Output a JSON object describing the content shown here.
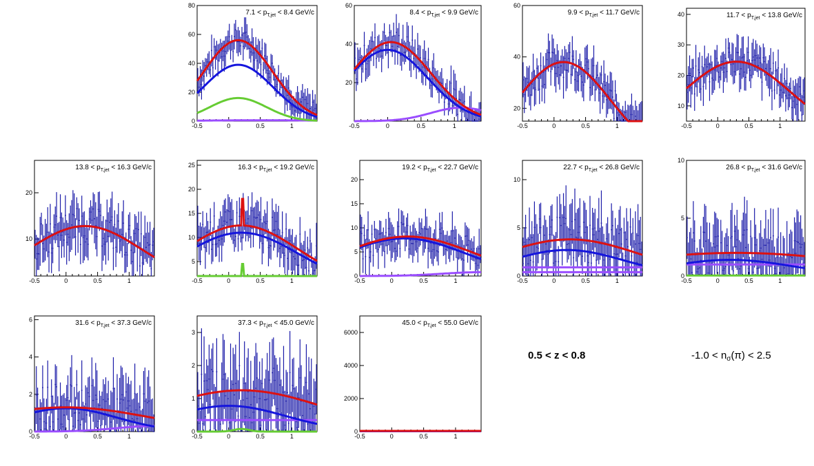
{
  "labels": {
    "z_range": "0.5 < z < 0.8",
    "nsigma_prefix": "-1.0 < n",
    "nsigma_sub": "σ",
    "nsigma_suffix": "(π) < 2.5"
  },
  "colors": {
    "data": "#1a1aa8",
    "total_fit": "#dd1111",
    "pion_fit": "#1515dd",
    "kaon_proton_fit": "#66cc33",
    "electron_fit": "#9a4dff"
  },
  "chart_data": [
    {
      "type": "line",
      "title": "7.1 < p_{T,jet} < 8.4 GeV/c",
      "title_parts": [
        "7.1 < p",
        "T,jet",
        "< 8.4 GeV/c"
      ],
      "xlim": [
        -0.5,
        1.4
      ],
      "ylim": [
        0,
        80
      ],
      "xticks": [
        "-0.5",
        "0",
        "0.5",
        "1"
      ],
      "yticks": [
        "0",
        "20",
        "40",
        "60",
        "80"
      ],
      "data_mean": {
        "amp": 56,
        "center": 0.15,
        "sigma": 0.55
      },
      "data_scatter": 8,
      "curves": {
        "total": {
          "amp": 56,
          "center": 0.15,
          "sigma": 0.55
        },
        "pion": {
          "amp": 39,
          "center": 0.15,
          "sigma": 0.55
        },
        "kaon": {
          "amp": 16,
          "center": 0.15,
          "sigma": 0.45
        },
        "electron": {
          "amp": 0.6,
          "center": 0.5,
          "sigma": 1.0
        }
      }
    },
    {
      "type": "line",
      "title": "8.4 < p_{T,jet} < 9.9 GeV/c",
      "title_parts": [
        "8.4 < p",
        "T,jet",
        "< 9.9 GeV/c"
      ],
      "xlim": [
        -0.5,
        1.4
      ],
      "ylim": [
        0,
        60
      ],
      "xticks": [
        "-0.5",
        "0",
        "0.5",
        "1"
      ],
      "yticks": [
        "20",
        "40",
        "60"
      ],
      "data_mean": {
        "amp": 41,
        "center": 0.05,
        "sigma": 0.6
      },
      "data_scatter": 7,
      "curves": {
        "total": {
          "amp": 41,
          "center": 0.05,
          "sigma": 0.6
        },
        "pion": {
          "amp": 37,
          "center": 0.0,
          "sigma": 0.6
        },
        "electron": {
          "amp": 7,
          "center": 1.1,
          "sigma": 0.45
        }
      }
    },
    {
      "type": "line",
      "title": "9.9 < p_{T,jet} < 11.7 GeV/c",
      "title_parts": [
        "9.9 < p",
        "T,jet",
        "< 11.7 GeV/c"
      ],
      "xlim": [
        -0.5,
        1.4
      ],
      "ylim": [
        15,
        60
      ],
      "xticks": [
        "-0.5",
        "0",
        "0.5",
        "1"
      ],
      "yticks": [
        "20",
        "40",
        "60"
      ],
      "data_mean": {
        "amp": 38,
        "center": 0.15,
        "sigma": 0.75
      },
      "data_scatter": 6,
      "curves": {
        "total": {
          "amp": 38,
          "center": 0.15,
          "sigma": 0.75
        },
        "pion": {
          "amp": 38,
          "center": 0.15,
          "sigma": 0.75
        }
      }
    },
    {
      "type": "line",
      "title": "11.7 < p_{T,jet} < 13.8 GeV/c",
      "title_parts": [
        "11.7 < p",
        "T,jet",
        "< 13.8 GeV/c"
      ],
      "xlim": [
        -0.5,
        1.4
      ],
      "ylim": [
        5,
        42
      ],
      "xticks": [
        "-0.5",
        "0",
        "0.5",
        "1"
      ],
      "yticks": [
        "10",
        "20",
        "30",
        "40"
      ],
      "data_mean": {
        "amp": 24.5,
        "center": 0.3,
        "sigma": 0.85
      },
      "data_scatter": 5,
      "curves": {
        "total": {
          "amp": 24.5,
          "center": 0.3,
          "sigma": 0.85
        },
        "pion": {
          "amp": 24.5,
          "center": 0.3,
          "sigma": 0.85
        }
      }
    },
    {
      "type": "line",
      "title": "13.8 < p_{T,jet} < 16.3 GeV/c",
      "title_parts": [
        "13.8 < p",
        "T,jet",
        "< 16.3 GeV/c"
      ],
      "xlim": [
        -0.5,
        1.4
      ],
      "ylim": [
        2,
        27
      ],
      "xticks": [
        "-0.5",
        "0",
        "0.5",
        "1"
      ],
      "yticks": [
        "10",
        "20"
      ],
      "data_mean": {
        "amp": 12.8,
        "center": 0.3,
        "sigma": 0.9
      },
      "data_scatter": 4,
      "curves": {
        "total": {
          "amp": 12.8,
          "center": 0.3,
          "sigma": 0.9
        },
        "pion": {
          "amp": 12.8,
          "center": 0.3,
          "sigma": 0.9
        }
      }
    },
    {
      "type": "line",
      "title": "16.3 < p_{T,jet} < 19.2 GeV/c",
      "title_parts": [
        "16.3 < p",
        "T,jet",
        "< 19.2 GeV/c"
      ],
      "xlim": [
        -0.5,
        1.4
      ],
      "ylim": [
        2,
        26
      ],
      "xticks": [
        "-0.5",
        "0",
        "0.5",
        "1"
      ],
      "yticks": [
        "5",
        "10",
        "15",
        "20",
        "25"
      ],
      "data_mean": {
        "amp": 12.5,
        "center": 0.2,
        "sigma": 0.9
      },
      "data_scatter": 3.5,
      "curves": {
        "total": {
          "amp": 12.5,
          "center": 0.2,
          "sigma": 0.9,
          "spike": {
            "at": 0.22,
            "height": 5.5
          }
        },
        "pion": {
          "amp": 11,
          "center": 0.2,
          "sigma": 0.9
        },
        "kaon": {
          "spike": {
            "at": 0.22,
            "height": 4.5
          }
        }
      }
    },
    {
      "type": "line",
      "title": "19.2 < p_{T,jet} < 22.7 GeV/c",
      "title_parts": [
        "19.2 < p",
        "T,jet",
        "< 22.7 GeV/c"
      ],
      "xlim": [
        -0.5,
        1.4
      ],
      "ylim": [
        0,
        24
      ],
      "xticks": [
        "-0.5",
        "0",
        "0.5",
        "1"
      ],
      "yticks": [
        "0",
        "5",
        "10",
        "15",
        "20"
      ],
      "data_mean": {
        "amp": 8.2,
        "center": 0.25,
        "sigma": 1.0
      },
      "data_scatter": 3,
      "curves": {
        "total": {
          "amp": 8.2,
          "center": 0.25,
          "sigma": 1.0
        },
        "pion": {
          "amp": 7.8,
          "center": 0.2,
          "sigma": 0.95
        },
        "electron": {
          "amp": 0.8,
          "center": 1.4,
          "sigma": 0.6
        }
      }
    },
    {
      "type": "line",
      "title": "22.7 < p_{T,jet} < 26.8 GeV/c",
      "title_parts": [
        "22.7 < p",
        "T,jet",
        "< 26.8 GeV/c"
      ],
      "xlim": [
        -0.5,
        1.4
      ],
      "ylim": [
        0,
        12
      ],
      "xticks": [
        "-0.5",
        "0",
        "0.5",
        "1"
      ],
      "yticks": [
        "0",
        "5",
        "10"
      ],
      "data_mean": {
        "amp": 3.8,
        "center": 0.25,
        "sigma": 1.1
      },
      "data_scatter": 2.5,
      "curves": {
        "total": {
          "amp": 3.8,
          "center": 0.25,
          "sigma": 1.1
        },
        "pion": {
          "amp": 2.7,
          "center": 0.2,
          "sigma": 0.9
        },
        "electron": {
          "flat": 0.9
        },
        "electron2": {
          "flat": 0.4
        }
      }
    },
    {
      "type": "line",
      "title": "26.8 < p_{T,jet} < 31.6 GeV/c",
      "title_parts": [
        "26.8 < p",
        "T,jet",
        "< 31.6 GeV/c"
      ],
      "xlim": [
        -0.5,
        1.4
      ],
      "ylim": [
        0,
        10
      ],
      "xticks": [
        "-0.5",
        "0",
        "0.5",
        "1"
      ],
      "yticks": [
        "0",
        "5",
        "10"
      ],
      "data_mean": {
        "amp": 2.0,
        "center": 0.3,
        "sigma": 1.5
      },
      "data_scatter": 2.2,
      "curves": {
        "total": {
          "amp": 2.0,
          "center": 0.3,
          "sigma": 2.0
        },
        "pion": {
          "amp": 1.4,
          "center": 0.2,
          "sigma": 1.0
        },
        "electron": {
          "flat": 1.0
        },
        "kaon": {
          "flat": 0.05
        }
      }
    },
    {
      "type": "line",
      "title": "31.6 < p_{T,jet} < 37.3 GeV/c",
      "title_parts": [
        "31.6 < p",
        "T,jet",
        "< 37.3 GeV/c"
      ],
      "xlim": [
        -0.5,
        1.4
      ],
      "ylim": [
        0,
        6.2
      ],
      "xticks": [
        "-0.5",
        "0",
        "0.5",
        "1"
      ],
      "yticks": [
        "0",
        "2",
        "4",
        "6"
      ],
      "data_mean": {
        "amp": 1.25,
        "center": 0.0,
        "sigma": 1.3
      },
      "data_scatter": 1.3,
      "curves": {
        "total": {
          "amp": 1.3,
          "center": 0.0,
          "sigma": 1.3
        },
        "pion": {
          "amp": 1.25,
          "center": 0.0,
          "sigma": 0.8
        },
        "electron": {
          "amp": 0.3,
          "center": 1.4,
          "sigma": 0.6
        }
      }
    },
    {
      "type": "line",
      "title": "37.3 < p_{T,jet} < 45.0 GeV/c",
      "title_parts": [
        "37.3 < p",
        "T,jet",
        "< 45.0 GeV/c"
      ],
      "xlim": [
        -0.5,
        1.4
      ],
      "ylim": [
        0,
        3.5
      ],
      "xticks": [
        "-0.5",
        "0",
        "0.5",
        "1"
      ],
      "yticks": [
        "0",
        "1",
        "2",
        "3"
      ],
      "data_mean": {
        "amp": 1.0,
        "center": 0.2,
        "sigma": 1.5
      },
      "data_scatter": 1.0,
      "curves": {
        "total": {
          "amp": 1.25,
          "center": 0.2,
          "sigma": 1.3
        },
        "pion": {
          "amp": 0.78,
          "center": 0.0,
          "sigma": 0.9
        },
        "electron": {
          "flat": 0.35
        },
        "kaon": {
          "amp": 0.08,
          "center": 0.2,
          "sigma": 0.12
        }
      }
    },
    {
      "type": "line",
      "title": "45.0 < p_{T,jet} < 55.0 GeV/c",
      "title_parts": [
        "45.0 < p",
        "T,jet",
        "< 55.0 GeV/c"
      ],
      "xlim": [
        -0.5,
        1.4
      ],
      "ylim": [
        0,
        7000
      ],
      "xticks": [
        "-0.5",
        "0",
        "0.5",
        "1"
      ],
      "yticks": [
        "0",
        "2000",
        "4000",
        "6000"
      ],
      "data_mean": {
        "amp": 30,
        "center": 0.0,
        "sigma": 0.8
      },
      "data_scatter": 20,
      "curves": {
        "total": {
          "flat": 40
        },
        "pion": {
          "flat": 30
        },
        "electron": {
          "flat": 20
        }
      }
    }
  ]
}
